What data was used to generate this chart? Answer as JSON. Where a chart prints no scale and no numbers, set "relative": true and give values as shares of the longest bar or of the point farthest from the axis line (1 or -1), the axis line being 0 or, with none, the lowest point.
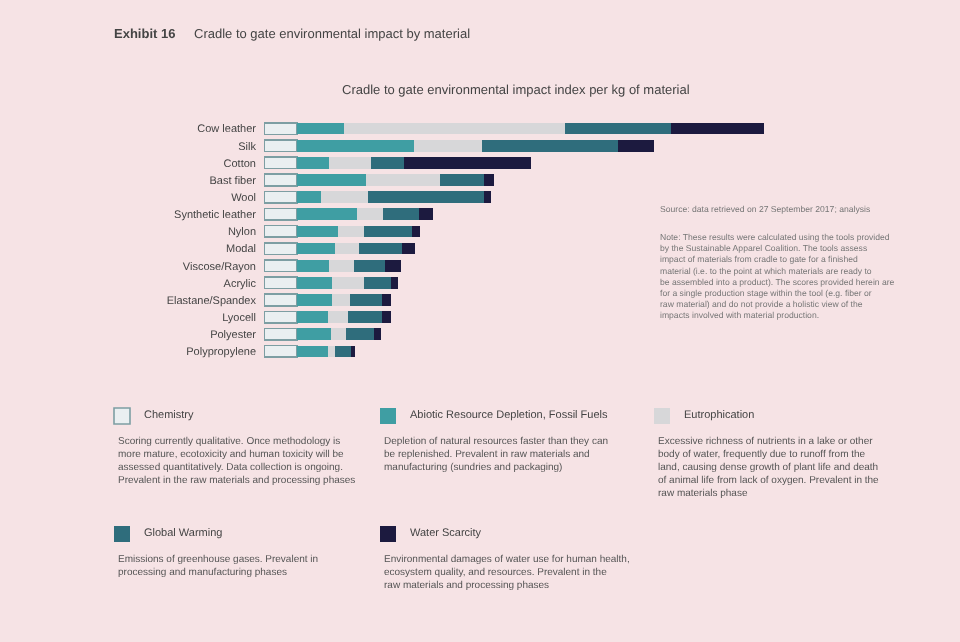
{
  "chart_data": {
    "type": "bar",
    "orientation": "horizontal",
    "stacked": true,
    "relative": true,
    "title": "Cradle to gate environmental impact by material",
    "subtitle": "Cradle to gate environmental impact index per kg of material",
    "categories": [
      "Cow leather",
      "Silk",
      "Cotton",
      "Bast fiber",
      "Wool",
      "Synthetic leather",
      "Nylon",
      "Modal",
      "Viscose/Rayon",
      "Acrylic",
      "Elastane/Spandex",
      "Lyocell",
      "Polyester",
      "Polypropylene"
    ],
    "series": [
      {
        "name": "Chemistry",
        "color": "#eaeff1",
        "values": [
          0.066,
          0.066,
          0.066,
          0.066,
          0.066,
          0.066,
          0.066,
          0.066,
          0.066,
          0.066,
          0.066,
          0.066,
          0.066,
          0.066
        ]
      },
      {
        "name": "Abiotic Resource Depletion, Fossil Fuels",
        "color": "#3f9ea3",
        "values": [
          0.094,
          0.233,
          0.064,
          0.137,
          0.048,
          0.119,
          0.081,
          0.075,
          0.064,
          0.069,
          0.069,
          0.062,
          0.068,
          0.062
        ]
      },
      {
        "name": "Eutrophication",
        "color": "#d7d7d9",
        "values": [
          0.441,
          0.137,
          0.083,
          0.149,
          0.093,
          0.053,
          0.053,
          0.048,
          0.05,
          0.065,
          0.036,
          0.04,
          0.03,
          0.013
        ]
      },
      {
        "name": "Global Warming",
        "color": "#2f6d7c",
        "values": [
          0.213,
          0.272,
          0.067,
          0.087,
          0.232,
          0.071,
          0.096,
          0.087,
          0.061,
          0.053,
          0.064,
          0.068,
          0.056,
          0.032
        ]
      },
      {
        "name": "Water Scarcity",
        "color": "#1c1a3f",
        "values": [
          0.186,
          0.071,
          0.253,
          0.021,
          0.014,
          0.028,
          0.015,
          0.026,
          0.033,
          0.015,
          0.018,
          0.018,
          0.013,
          0.009
        ]
      }
    ],
    "legend": "bottom",
    "tick_labels": "y",
    "grid": false,
    "annotations": [
      "Exhibit 16",
      "Source: data retrieved on 27 September 2017; analysis",
      "Note: These results were calculated using the tools provided by the Sustainable Apparel Coalition. The tools assess impact of materials from cradle to gate for a finished material (i.e. to the point at which materials are ready to be assembled into a product). The scores provided herein are for a single production stage within the tool (e.g. fiber or raw material) and do not provide a holistic view of the impacts involved with material production.",
      "Scoring currently qualitative. Once methodology is more mature, ecotoxicity and human toxicity will be assessed quantitatively. Data collection is ongoing. Prevalent in the raw materials and processing phases",
      "Depletion of natural resources faster than they can be replenished. Prevalent in raw materials and manufacturing (sundries and packaging)",
      "Excessive richness of nutrients in a lake or other body of water, frequently due to runoff from the land, causing dense growth of plant life and death of animal life from lack of oxygen. Prevalent in the raw materials phase",
      "Emissions of greenhouse gases. Prevalent in processing and manufacturing phases",
      "Environmental damages of water use for human health, ecosystem quality, and resources. Prevalent in the raw materials and processing phases"
    ]
  }
}
